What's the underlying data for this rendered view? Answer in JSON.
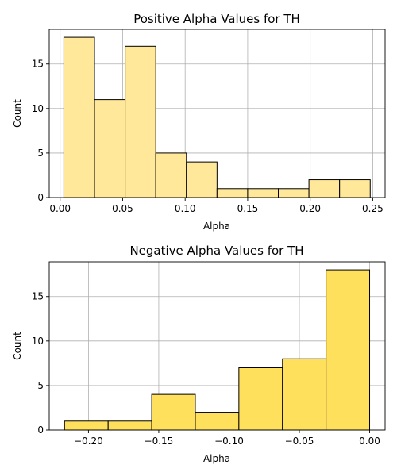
{
  "chart_data": [
    {
      "type": "histogram",
      "title": "Positive Alpha Values for TH",
      "xlabel": "Alpha",
      "ylabel": "Count",
      "xlim": [
        -0.0087,
        0.2599
      ],
      "ylim": [
        0,
        18.9
      ],
      "xticks": [
        0.0,
        0.05,
        0.1,
        0.15,
        0.2,
        0.25
      ],
      "xtick_labels": [
        "0.00",
        "0.05",
        "0.10",
        "0.15",
        "0.20",
        "0.25"
      ],
      "yticks": [
        0,
        5,
        10,
        15
      ],
      "ytick_labels": [
        "0",
        "5",
        "10",
        "15"
      ],
      "bin_edges": [
        0.003,
        0.0275,
        0.052,
        0.0765,
        0.101,
        0.1255,
        0.15,
        0.1745,
        0.199,
        0.2235,
        0.248
      ],
      "counts": [
        18,
        11,
        17,
        5,
        4,
        1,
        1,
        1,
        2,
        2
      ],
      "bar_color": "#ffe899",
      "grid": true
    },
    {
      "type": "histogram",
      "title": "Negative Alpha Values for TH",
      "xlabel": "Alpha",
      "ylabel": "Count",
      "xlim": [
        -0.2279,
        0.011
      ],
      "ylim": [
        0,
        18.9
      ],
      "xticks": [
        -0.2,
        -0.15,
        -0.1,
        -0.05,
        0.0
      ],
      "xtick_labels": [
        "−0.20",
        "−0.15",
        "−0.10",
        "−0.05",
        "0.00"
      ],
      "yticks": [
        0,
        5,
        10,
        15
      ],
      "ytick_labels": [
        "0",
        "5",
        "10",
        "15"
      ],
      "bin_edges": [
        -0.217,
        -0.186,
        -0.155,
        -0.124,
        -0.093,
        -0.062,
        -0.031,
        0.0
      ],
      "counts": [
        1,
        1,
        4,
        2,
        7,
        8,
        18
      ],
      "bar_color": "#ffe05c",
      "grid": true
    }
  ]
}
